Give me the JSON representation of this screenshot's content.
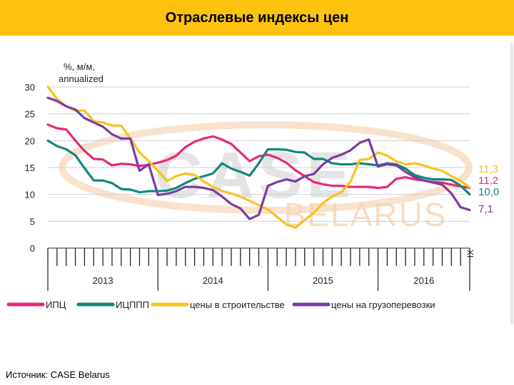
{
  "slide": {
    "title": "Отраслевые индексы цен",
    "source": "Источник: CASE Belarus"
  },
  "watermark": {
    "brand": "CASE",
    "sub": "BELARUS",
    "colors": [
      "#cfcfcf",
      "#f6d2b0"
    ]
  },
  "chart_data": {
    "type": "line",
    "ylabel": "%, м/м, annualized",
    "ylim": [
      0,
      30
    ],
    "yticks": [
      0,
      5,
      10,
      15,
      20,
      25,
      30
    ],
    "grid": true,
    "legend_position": "bottom",
    "n_points": 47,
    "year_labels": [
      {
        "label": "2013",
        "start": 0,
        "end": 12
      },
      {
        "label": "2014",
        "start": 12,
        "end": 24
      },
      {
        "label": "2015",
        "start": 24,
        "end": 36
      },
      {
        "label": "2016",
        "start": 36,
        "end": 46
      }
    ],
    "end_marker": "IX",
    "series": [
      {
        "name": "ИПЦ",
        "color": "#e8287a",
        "end_label": "11,2",
        "values": [
          23,
          22.3,
          22.1,
          20,
          18.1,
          16.6,
          16.5,
          15.4,
          15.7,
          15.6,
          15.3,
          15.5,
          15.9,
          16.4,
          17.2,
          18.8,
          19.8,
          20.4,
          20.8,
          20.2,
          19.4,
          17.8,
          16.2,
          17.1,
          17.4,
          16.8,
          15.9,
          14.5,
          13.4,
          12.3,
          11.9,
          11.6,
          11.6,
          11.4,
          11.4,
          11.4,
          11.2,
          11.4,
          12.9,
          13.2,
          12.8,
          12.6,
          12.3,
          12.2,
          11.8,
          11.5,
          11.2
        ]
      },
      {
        "name": "ИЦППП",
        "color": "#12877b",
        "end_label": "10,0",
        "values": [
          20,
          19,
          18.4,
          17.3,
          14.9,
          12.6,
          12.6,
          12.1,
          11,
          10.9,
          10.4,
          10.6,
          10.6,
          10.7,
          11.2,
          12.1,
          12.9,
          13.4,
          13.9,
          15.8,
          14.8,
          14.2,
          13.5,
          15.8,
          18.4,
          18.4,
          18.3,
          17.9,
          17.8,
          16.6,
          16.6,
          15.8,
          15.6,
          15.6,
          15.8,
          15.6,
          15.4,
          15.8,
          15.6,
          14.8,
          13.6,
          13.1,
          12.8,
          12.8,
          12.7,
          11.6,
          10
        ]
      },
      {
        "name": "цены в строительстве",
        "color": "#f7c21e",
        "end_label": "11,3",
        "values": [
          30,
          27.8,
          26.4,
          25.6,
          25.6,
          23.6,
          23.4,
          22.8,
          22.8,
          20.4,
          17.8,
          16.2,
          14.4,
          12.5,
          13.4,
          13.9,
          13.6,
          12.4,
          11.4,
          10.6,
          10.2,
          9.6,
          8.8,
          8,
          7.2,
          5.8,
          4.4,
          3.8,
          5.2,
          6.6,
          8.4,
          9.6,
          10.4,
          12.4,
          16.4,
          16.6,
          17.8,
          17.2,
          16.2,
          15.6,
          15.8,
          15.4,
          14.8,
          14.4,
          13.4,
          12.5,
          11.3
        ]
      },
      {
        "name": "цены на грузоперевозки",
        "color": "#7b3ba3",
        "end_label": "7,1",
        "values": [
          28,
          27.4,
          26.4,
          25.8,
          24.2,
          23.4,
          22.6,
          21.2,
          20.4,
          20.4,
          14.4,
          15.6,
          9.9,
          10.1,
          10.6,
          11.4,
          11.4,
          11.2,
          10.8,
          9.6,
          8.2,
          7.4,
          5.4,
          6.2,
          11.6,
          12.3,
          12.8,
          12.4,
          13.4,
          13.8,
          15.6,
          16.8,
          17.4,
          18.2,
          19.6,
          20.2,
          15.2,
          15.6,
          15.4,
          14.2,
          13.2,
          12.6,
          12.2,
          11.8,
          10.2,
          7.6,
          7.1
        ]
      }
    ]
  }
}
